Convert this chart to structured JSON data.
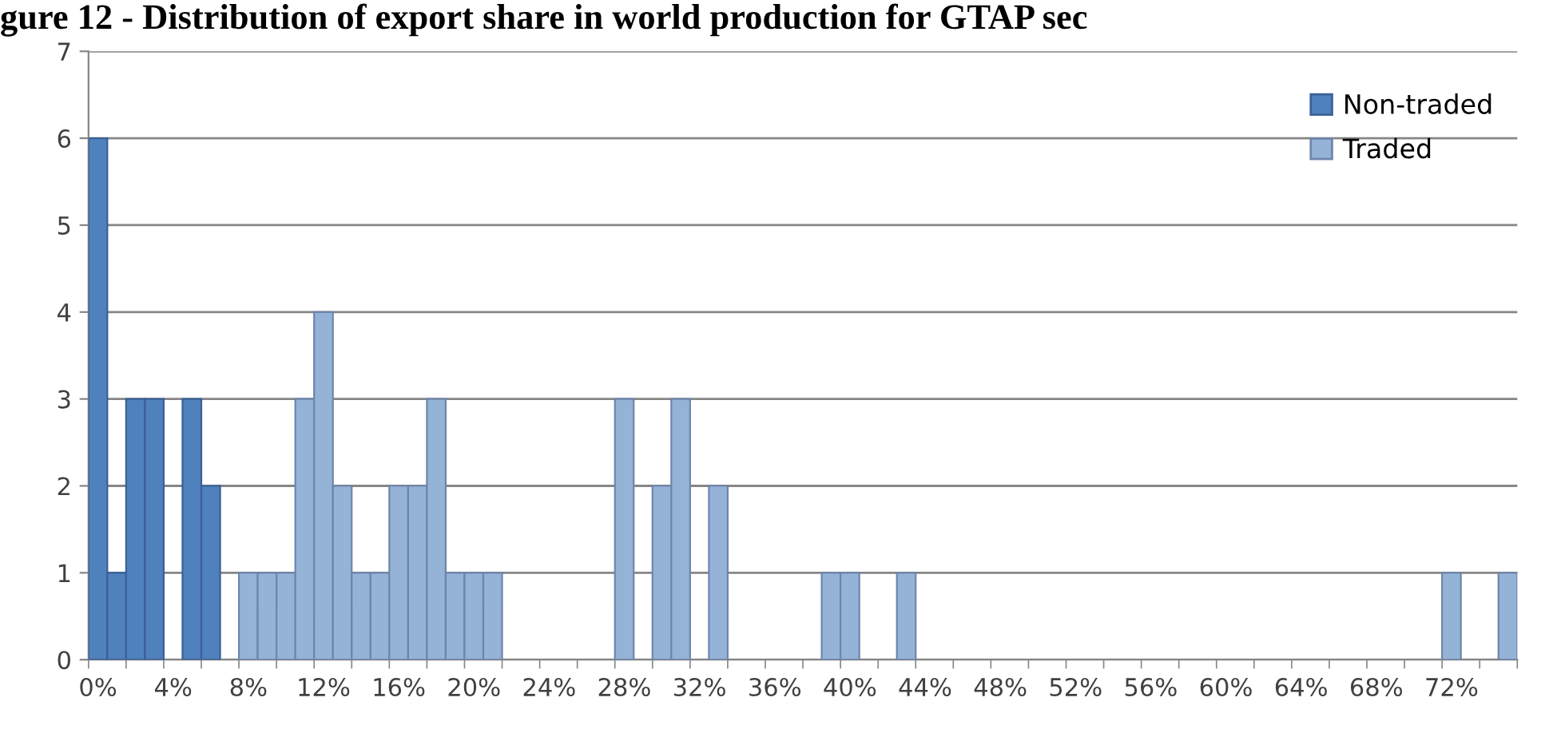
{
  "chart_data": {
    "type": "bar",
    "title": "gure 12 - Distribution of export share in world production for GTAP sec",
    "categories": [
      "0%",
      null,
      null,
      null,
      "4%",
      null,
      null,
      null,
      "8%",
      null,
      null,
      null,
      "12%",
      null,
      null,
      null,
      "16%",
      null,
      null,
      null,
      "20%",
      null,
      null,
      null,
      "24%",
      null,
      null,
      null,
      "28%",
      null,
      null,
      null,
      "32%",
      null,
      null,
      null,
      "36%",
      null,
      null,
      null,
      "40%",
      null,
      null,
      null,
      "44%",
      null,
      null,
      null,
      "48%",
      null,
      null,
      null,
      "52%",
      null,
      null,
      null,
      "56%",
      null,
      null,
      null,
      "60%",
      null,
      null,
      null,
      "64%",
      null,
      null,
      null,
      "68%",
      null,
      null,
      null,
      "72%",
      null,
      null,
      null
    ],
    "series": [
      {
        "name": "Non-traded",
        "color": "#4f81bd",
        "values": [
          6,
          1,
          3,
          3,
          null,
          3,
          2,
          null,
          null,
          null,
          null,
          null,
          null,
          null,
          null,
          null,
          null,
          null,
          null,
          null,
          null,
          null,
          null,
          null,
          null,
          null,
          null,
          null,
          null,
          null,
          null,
          null,
          null,
          null,
          null,
          null,
          null,
          null,
          null,
          null,
          null,
          null,
          null,
          null,
          null,
          null,
          null,
          null,
          null,
          null,
          null,
          null,
          null,
          null,
          null,
          null,
          null,
          null,
          null,
          null,
          null,
          null,
          null,
          null,
          null,
          null,
          null,
          null,
          null,
          null,
          null,
          null,
          null,
          null,
          null,
          null
        ]
      },
      {
        "name": "Traded",
        "color": "#95b3d7",
        "values": [
          null,
          null,
          null,
          null,
          null,
          null,
          null,
          null,
          1,
          1,
          1,
          3,
          4,
          2,
          1,
          1,
          2,
          2,
          3,
          1,
          1,
          1,
          null,
          null,
          null,
          null,
          null,
          null,
          3,
          null,
          2,
          3,
          null,
          2,
          null,
          null,
          null,
          null,
          null,
          1,
          1,
          null,
          null,
          1,
          null,
          null,
          null,
          null,
          null,
          null,
          null,
          null,
          null,
          null,
          null,
          null,
          null,
          null,
          null,
          null,
          null,
          null,
          null,
          null,
          null,
          null,
          null,
          null,
          null,
          null,
          null,
          null,
          1,
          null,
          null,
          1
        ]
      }
    ],
    "ylim": [
      0,
      7
    ],
    "yticks": [
      0,
      1,
      2,
      3,
      4,
      5,
      6,
      7
    ],
    "grid": "y",
    "legend": "top right"
  }
}
